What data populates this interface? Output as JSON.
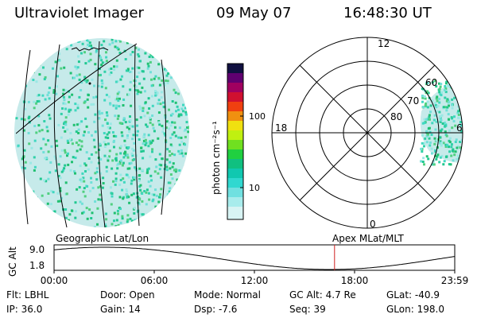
{
  "header": {
    "instrument": "Ultraviolet Imager",
    "date": "09 May 07",
    "time": "16:48:30 UT"
  },
  "colorbar": {
    "unit_label": "photon cm⁻²s⁻¹",
    "ticks": [
      "100",
      "10"
    ]
  },
  "polar_plot": {
    "mlt_labels": {
      "top": "12",
      "left": "18",
      "right": "6",
      "bottom": "0"
    },
    "lat_labels": [
      "60",
      "70",
      "80"
    ]
  },
  "timeline": {
    "left_caption": "Geographic Lat/Lon",
    "right_caption": "Apex MLat/MLT",
    "axis_title": "GC Alt",
    "y_ticks": [
      "9.0",
      "1.8"
    ],
    "x_ticks": [
      "00:00",
      "06:00",
      "12:00",
      "18:00",
      "23:59"
    ],
    "marker_time": "16:48"
  },
  "info": {
    "row1": [
      {
        "label": "Flt:",
        "value": "LBHL"
      },
      {
        "label": "Door:",
        "value": "Open"
      },
      {
        "label": "Mode:",
        "value": "Normal"
      },
      {
        "label": "GC Alt:",
        "value": "4.7 Re"
      },
      {
        "label": "GLat:",
        "value": "-40.9"
      }
    ],
    "row2": [
      {
        "label": "IP:",
        "value": "36.0"
      },
      {
        "label": "Gain:",
        "value": "14"
      },
      {
        "label": "Dsp:",
        "value": "-7.6"
      },
      {
        "label": "Seq:",
        "value": "39"
      },
      {
        "label": "GLon:",
        "value": "198.0"
      }
    ]
  },
  "colors": {
    "marker": "#d02020",
    "background": "#ffffff",
    "aurora_low": "#c8ecec",
    "aurora_high": "#20c890"
  }
}
